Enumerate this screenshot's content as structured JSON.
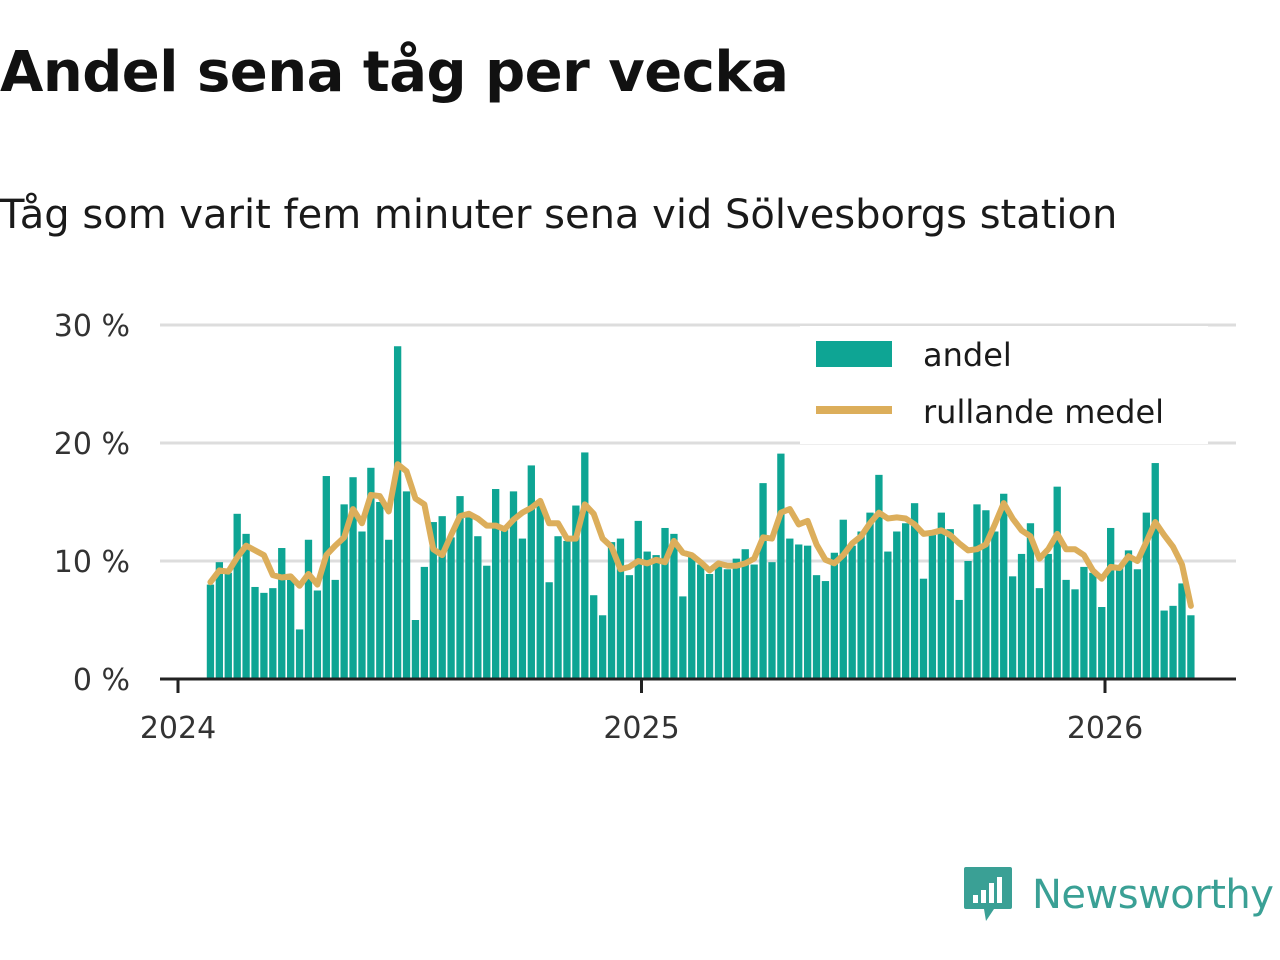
{
  "title": "Andel sena tåg per vecka",
  "subtitle": "Tåg som varit fem minuter sena vid Sölvesborgs station",
  "brand": {
    "name": "Newsworthy",
    "icon": "chart-bubble-icon",
    "color": "#3aa095"
  },
  "colors": {
    "bar": "#0ea594",
    "line": "#dcae5b",
    "grid": "#dddddd",
    "axis": "#222222"
  },
  "chart_data": {
    "type": "bar",
    "title": "Andel sena tåg per vecka",
    "xlabel": "",
    "ylabel": "",
    "ylim": [
      0,
      30
    ],
    "yticks": [
      0,
      10,
      20,
      30
    ],
    "ytick_labels": [
      "0 %",
      "10 %",
      "20 %",
      "30 %"
    ],
    "xticks": [
      2024,
      2025,
      2026
    ],
    "xtick_labels": [
      "2024",
      "2025",
      "2026"
    ],
    "xlim": [
      2024.0,
      2026.28
    ],
    "x_start": 2024.07,
    "x_step": 0.01923,
    "grid": true,
    "legend_position": "top-right",
    "series": [
      {
        "name": "andel",
        "kind": "bar",
        "values": [
          8.0,
          9.9,
          9.0,
          14.0,
          12.3,
          7.8,
          7.3,
          7.7,
          11.1,
          8.5,
          4.2,
          11.8,
          7.5,
          17.2,
          8.4,
          14.8,
          17.1,
          12.5,
          17.9,
          15.0,
          11.8,
          28.2,
          15.9,
          5.0,
          9.5,
          13.3,
          13.8,
          12.0,
          15.5,
          13.7,
          12.1,
          9.6,
          16.1,
          12.9,
          15.9,
          11.9,
          18.1,
          14.8,
          8.2,
          12.1,
          11.7,
          14.7,
          19.2,
          7.1,
          5.4,
          11.6,
          11.9,
          8.8,
          13.4,
          10.8,
          10.5,
          12.8,
          12.3,
          7.0,
          10.6,
          9.7,
          8.9,
          9.8,
          9.3,
          10.2,
          11.0,
          9.7,
          16.6,
          9.9,
          19.1,
          11.9,
          11.4,
          11.3,
          8.8,
          8.3,
          10.7,
          13.5,
          11.3,
          12.5,
          14.1,
          17.3,
          10.8,
          12.5,
          13.2,
          14.9,
          8.5,
          12.2,
          14.1,
          12.7,
          6.7,
          10.0,
          14.8,
          14.3,
          12.5,
          15.7,
          8.7,
          10.6,
          13.2,
          7.7,
          10.6,
          16.3,
          8.4,
          7.6,
          9.5,
          9.0,
          6.1,
          12.8,
          9.5,
          10.9,
          9.3,
          14.1,
          18.3,
          5.8,
          6.2,
          8.1,
          5.4
        ]
      },
      {
        "name": "rullande medel",
        "kind": "line",
        "values": [
          8.2,
          9.2,
          9.1,
          10.3,
          11.3,
          10.9,
          10.5,
          8.8,
          8.6,
          8.7,
          7.9,
          8.9,
          8.0,
          10.5,
          11.3,
          12.0,
          14.4,
          13.2,
          15.6,
          15.5,
          14.2,
          18.2,
          17.6,
          15.3,
          14.8,
          11.0,
          10.5,
          12.2,
          13.8,
          14.0,
          13.6,
          13.0,
          13.0,
          12.7,
          13.5,
          14.1,
          14.5,
          15.1,
          13.2,
          13.2,
          11.9,
          11.9,
          14.8,
          14.0,
          11.9,
          11.2,
          9.3,
          9.5,
          10.0,
          9.8,
          10.1,
          9.9,
          11.7,
          10.7,
          10.5,
          9.9,
          9.2,
          9.8,
          9.6,
          9.6,
          9.8,
          10.2,
          12.0,
          11.9,
          14.1,
          14.4,
          13.1,
          13.4,
          11.4,
          10.1,
          9.8,
          10.5,
          11.5,
          12.1,
          13.2,
          14.1,
          13.6,
          13.7,
          13.6,
          13.1,
          12.3,
          12.4,
          12.6,
          12.2,
          11.5,
          10.9,
          11.0,
          11.4,
          13.1,
          14.9,
          13.6,
          12.6,
          12.1,
          10.2,
          11.0,
          12.3,
          11.0,
          11.0,
          10.5,
          9.2,
          8.5,
          9.5,
          9.4,
          10.4,
          10.0,
          11.6,
          13.3,
          12.2,
          11.2,
          9.7,
          6.2
        ]
      }
    ]
  }
}
